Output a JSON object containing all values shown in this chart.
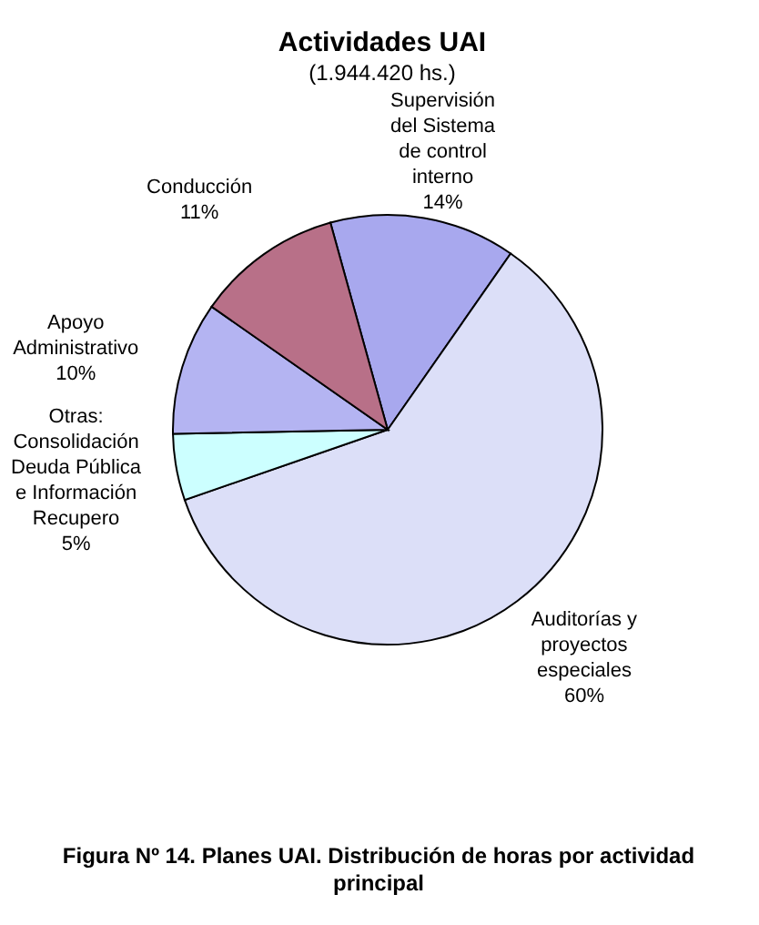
{
  "chart_data": {
    "type": "pie",
    "title": "Actividades UAI",
    "subtitle": "(1.944.420 hs.)",
    "categories": [
      "Supervisión del Sistema de control interno",
      "Auditorías y proyectos especiales",
      "Otras: Consolidación Deuda Pública e Información Recupero",
      "Apoyo Administrativo",
      "Conducción"
    ],
    "values": [
      14,
      60,
      5,
      10,
      11
    ],
    "colors": [
      "#a8a8ee",
      "#dcdff8",
      "#ccffff",
      "#b4b4f2",
      "#b87088"
    ],
    "value_labels": [
      "14%",
      "60%",
      "5%",
      "10%",
      "11%"
    ],
    "annotations": [
      "Figura Nº 14. Planes UAI. Distribución de horas por actividad principal"
    ]
  }
}
